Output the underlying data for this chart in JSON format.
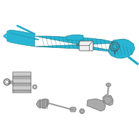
{
  "bg_color": "#ffffff",
  "rack_color": "#29b6d4",
  "rack_edge": "#1a7a8a",
  "rack_dark": "#0d6b7a",
  "gray": "#aaaaaa",
  "gray_dark": "#666666",
  "gray_light": "#cccccc",
  "outline": "#555555"
}
